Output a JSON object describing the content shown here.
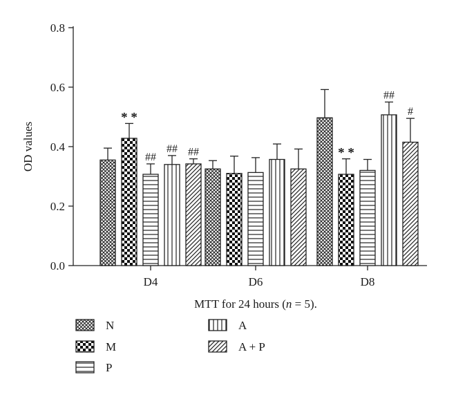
{
  "chart_data": {
    "type": "bar",
    "xlabel_parts": [
      "MTT for 24 hours (",
      "n",
      " = 5)."
    ],
    "ylabel": "OD values",
    "ylim": [
      0,
      0.8
    ],
    "yticks": [
      "0.0",
      "0.2",
      "0.4",
      "0.6",
      "0.8"
    ],
    "categories": [
      "D4",
      "D6",
      "D8"
    ],
    "grid": false,
    "legend_position": "bottom-left",
    "series": [
      {
        "name": "N",
        "pattern": "crosshatch",
        "values": [
          0.355,
          0.325,
          0.497
        ],
        "errors": [
          0.04,
          0.028,
          0.095
        ],
        "annotations": [
          "",
          "",
          ""
        ]
      },
      {
        "name": "M",
        "pattern": "checker",
        "values": [
          0.428,
          0.31,
          0.307
        ],
        "errors": [
          0.05,
          0.058,
          0.052
        ],
        "annotations": [
          "**",
          "",
          "**"
        ]
      },
      {
        "name": "P",
        "pattern": "horizontal",
        "values": [
          0.307,
          0.313,
          0.32
        ],
        "errors": [
          0.035,
          0.05,
          0.037
        ],
        "annotations": [
          "##",
          "",
          ""
        ]
      },
      {
        "name": "A",
        "pattern": "vertical",
        "values": [
          0.34,
          0.357,
          0.507
        ],
        "errors": [
          0.03,
          0.052,
          0.043
        ],
        "annotations": [
          "##",
          "",
          "##"
        ]
      },
      {
        "name": "A + P",
        "pattern": "diagonal",
        "values": [
          0.342,
          0.325,
          0.415
        ],
        "errors": [
          0.017,
          0.067,
          0.08
        ],
        "annotations": [
          "##",
          "",
          "#"
        ]
      }
    ]
  }
}
